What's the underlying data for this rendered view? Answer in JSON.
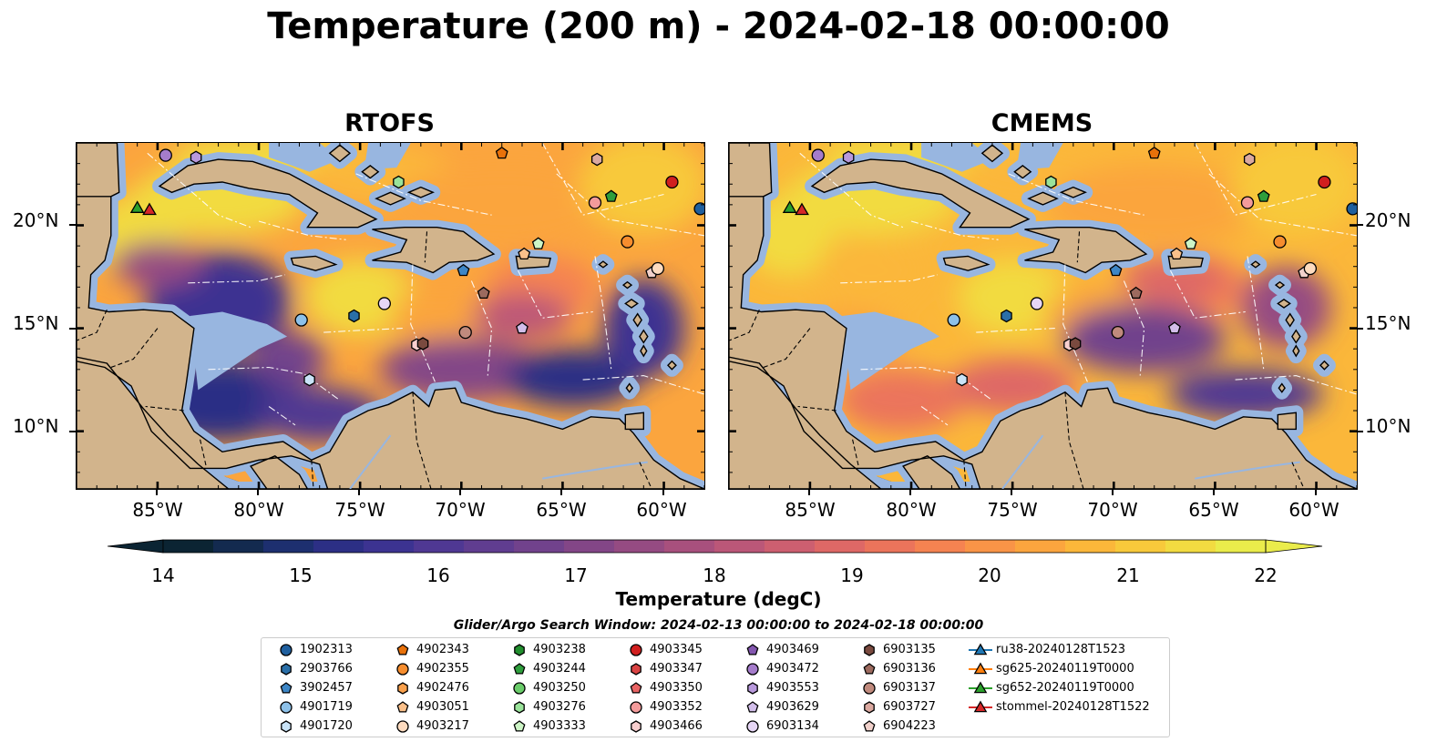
{
  "figure": {
    "title": "Temperature (200 m) - 2024-02-18 00:00:00",
    "colors": {
      "land": "#d2b48c",
      "shelf": "#98b6e0",
      "deep": "#062433",
      "eez_lines": "#ffffff",
      "coast": "#000000"
    }
  },
  "panels": [
    {
      "title": "RTOFS"
    },
    {
      "title": "CMEMS"
    }
  ],
  "axes": {
    "x_ticks": [
      "85°W",
      "80°W",
      "75°W",
      "70°W",
      "65°W",
      "60°W"
    ],
    "y_ticks": [
      "20°N",
      "15°N",
      "10°N"
    ],
    "lon_range": [
      -89,
      -58
    ],
    "lat_range": [
      7.2,
      24
    ]
  },
  "colorbar": {
    "label": "Temperature (degC)",
    "ticks": [
      "14",
      "15",
      "16",
      "17",
      "18",
      "19",
      "20",
      "21",
      "22"
    ],
    "range": [
      14,
      22
    ],
    "extend": "both",
    "colors": [
      "#0b2433",
      "#132a4f",
      "#1d2f6f",
      "#2c2f85",
      "#3c3391",
      "#4f3893",
      "#603d90",
      "#71428c",
      "#834687",
      "#954b82",
      "#a8507d",
      "#bb5778",
      "#cd5f70",
      "#de6866",
      "#eb745b",
      "#f58351",
      "#f99447",
      "#fba53e",
      "#fbb73a",
      "#f8c93b",
      "#f2db41",
      "#eaec4b"
    ]
  },
  "legend": {
    "title": "Glider/Argo Search Window: 2024-02-13 00:00:00 to 2024-02-18 00:00:00",
    "columns": [
      [
        {
          "label": "1902313",
          "marker": "circle",
          "color": "#1f5f9e"
        },
        {
          "label": "2903766",
          "marker": "hexagon",
          "color": "#2a6fa8"
        },
        {
          "label": "3902457",
          "marker": "pentagon",
          "color": "#3d86c6"
        },
        {
          "label": "4901719",
          "marker": "circle",
          "color": "#8dc1e9"
        },
        {
          "label": "4901720",
          "marker": "hexagon",
          "color": "#c9e3f7"
        }
      ],
      [
        {
          "label": "4902343",
          "marker": "pentagon",
          "color": "#e8710a"
        },
        {
          "label": "4902355",
          "marker": "circle",
          "color": "#f68d2e"
        },
        {
          "label": "4902476",
          "marker": "hexagon",
          "color": "#f9a04c"
        },
        {
          "label": "4903051",
          "marker": "pentagon",
          "color": "#fbc08a"
        },
        {
          "label": "4903217",
          "marker": "circle",
          "color": "#fddbbf"
        }
      ],
      [
        {
          "label": "4903238",
          "marker": "hexagon",
          "color": "#218f2e"
        },
        {
          "label": "4903244",
          "marker": "pentagon",
          "color": "#2e9e3c"
        },
        {
          "label": "4903250",
          "marker": "circle",
          "color": "#6acc6a"
        },
        {
          "label": "4903276",
          "marker": "hexagon",
          "color": "#9ae39a"
        },
        {
          "label": "4903333",
          "marker": "pentagon",
          "color": "#cdf5c6"
        }
      ],
      [
        {
          "label": "4903345",
          "marker": "circle",
          "color": "#d11f1f"
        },
        {
          "label": "4903347",
          "marker": "hexagon",
          "color": "#d94343"
        },
        {
          "label": "4903350",
          "marker": "pentagon",
          "color": "#e86363"
        },
        {
          "label": "4903352",
          "marker": "circle",
          "color": "#f39b9b"
        },
        {
          "label": "4903466",
          "marker": "hexagon",
          "color": "#f9cfcf"
        }
      ],
      [
        {
          "label": "4903469",
          "marker": "pentagon",
          "color": "#8457b0"
        },
        {
          "label": "4903472",
          "marker": "circle",
          "color": "#a57ccb"
        },
        {
          "label": "4903553",
          "marker": "hexagon",
          "color": "#b899dc"
        },
        {
          "label": "4903629",
          "marker": "pentagon",
          "color": "#d2beea"
        },
        {
          "label": "6903134",
          "marker": "circle",
          "color": "#e6d6f5"
        }
      ],
      [
        {
          "label": "6903135",
          "marker": "hexagon",
          "color": "#7a4a3f"
        },
        {
          "label": "6903136",
          "marker": "pentagon",
          "color": "#9c6a5e"
        },
        {
          "label": "6903137",
          "marker": "circle",
          "color": "#c08a7d"
        },
        {
          "label": "6903727",
          "marker": "hexagon",
          "color": "#dba9a0"
        },
        {
          "label": "6904223",
          "marker": "pentagon",
          "color": "#f1d1cb"
        }
      ],
      [
        {
          "label": "ru38-20240128T1523",
          "marker": "triangle",
          "color": "#1f77b4"
        },
        {
          "label": "sg625-20240119T0000",
          "marker": "triangle",
          "color": "#ff7f0e"
        },
        {
          "label": "sg652-20240119T0000",
          "marker": "triangle",
          "color": "#2ca02c"
        },
        {
          "label": "stommel-20240128T1522",
          "marker": "triangle",
          "color": "#d62728"
        }
      ]
    ]
  },
  "floats": [
    {
      "id": "4901719",
      "lon": -77.9,
      "lat": 15.4,
      "marker": "circle",
      "color": "#8dc1e9"
    },
    {
      "id": "2903766",
      "lon": -75.3,
      "lat": 15.6,
      "marker": "hexagon",
      "color": "#2a6fa8"
    },
    {
      "id": "4901720",
      "lon": -77.5,
      "lat": 12.5,
      "marker": "hexagon",
      "color": "#c9e3f7"
    },
    {
      "id": "6903134",
      "lon": -73.8,
      "lat": 16.2,
      "marker": "circle",
      "color": "#e6d6f5"
    },
    {
      "id": "3902457",
      "lon": -69.9,
      "lat": 17.8,
      "marker": "pentagon",
      "color": "#3d86c6"
    },
    {
      "id": "6903136",
      "lon": -68.9,
      "lat": 16.7,
      "marker": "pentagon",
      "color": "#9c6a5e"
    },
    {
      "id": "6903137",
      "lon": -69.8,
      "lat": 14.8,
      "marker": "circle",
      "color": "#c08a7d"
    },
    {
      "id": "4903466",
      "lon": -72.2,
      "lat": 14.2,
      "marker": "hexagon",
      "color": "#f9cfcf"
    },
    {
      "id": "6903135",
      "lon": -71.9,
      "lat": 14.25,
      "marker": "hexagon",
      "color": "#7a4a3f"
    },
    {
      "id": "4903629",
      "lon": -67.0,
      "lat": 15.0,
      "marker": "pentagon",
      "color": "#d2beea"
    },
    {
      "id": "4903051",
      "lon": -66.9,
      "lat": 18.6,
      "marker": "pentagon",
      "color": "#fbc08a"
    },
    {
      "id": "4903333",
      "lon": -66.2,
      "lat": 19.1,
      "marker": "pentagon",
      "color": "#cdf5c6"
    },
    {
      "id": "4903352",
      "lon": -63.4,
      "lat": 21.1,
      "marker": "circle",
      "color": "#f39b9b"
    },
    {
      "id": "4902355",
      "lon": -61.8,
      "lat": 19.2,
      "marker": "circle",
      "color": "#f68d2e"
    },
    {
      "id": "6904223",
      "lon": -60.6,
      "lat": 17.7,
      "marker": "pentagon",
      "color": "#f1d1cb"
    },
    {
      "id": "4903217",
      "lon": -60.3,
      "lat": 17.9,
      "marker": "circle",
      "color": "#fddbbf"
    },
    {
      "id": "4903345",
      "lon": -59.6,
      "lat": 22.1,
      "marker": "circle",
      "color": "#d11f1f"
    },
    {
      "id": "1902313",
      "lon": -58.2,
      "lat": 20.8,
      "marker": "circle",
      "color": "#1f5f9e"
    },
    {
      "id": "4903244",
      "lon": -62.6,
      "lat": 21.4,
      "marker": "pentagon",
      "color": "#2e9e3c"
    },
    {
      "id": "4903276",
      "lon": -73.1,
      "lat": 22.1,
      "marker": "hexagon",
      "color": "#9ae39a"
    },
    {
      "id": "6903727",
      "lon": -63.3,
      "lat": 23.2,
      "marker": "hexagon",
      "color": "#dba9a0"
    },
    {
      "id": "4902343",
      "lon": -68.0,
      "lat": 23.5,
      "marker": "pentagon",
      "color": "#e8710a"
    },
    {
      "id": "4903472",
      "lon": -84.6,
      "lat": 23.4,
      "marker": "circle",
      "color": "#a57ccb"
    },
    {
      "id": "4903553",
      "lon": -83.1,
      "lat": 23.3,
      "marker": "hexagon",
      "color": "#b899dc"
    },
    {
      "id": "sg652-20240119T0000",
      "lon": -86.0,
      "lat": 20.8,
      "marker": "triangle",
      "color": "#2ca02c"
    },
    {
      "id": "stommel-20240128T1522",
      "lon": -85.4,
      "lat": 20.7,
      "marker": "triangle",
      "color": "#d62728"
    }
  ]
}
